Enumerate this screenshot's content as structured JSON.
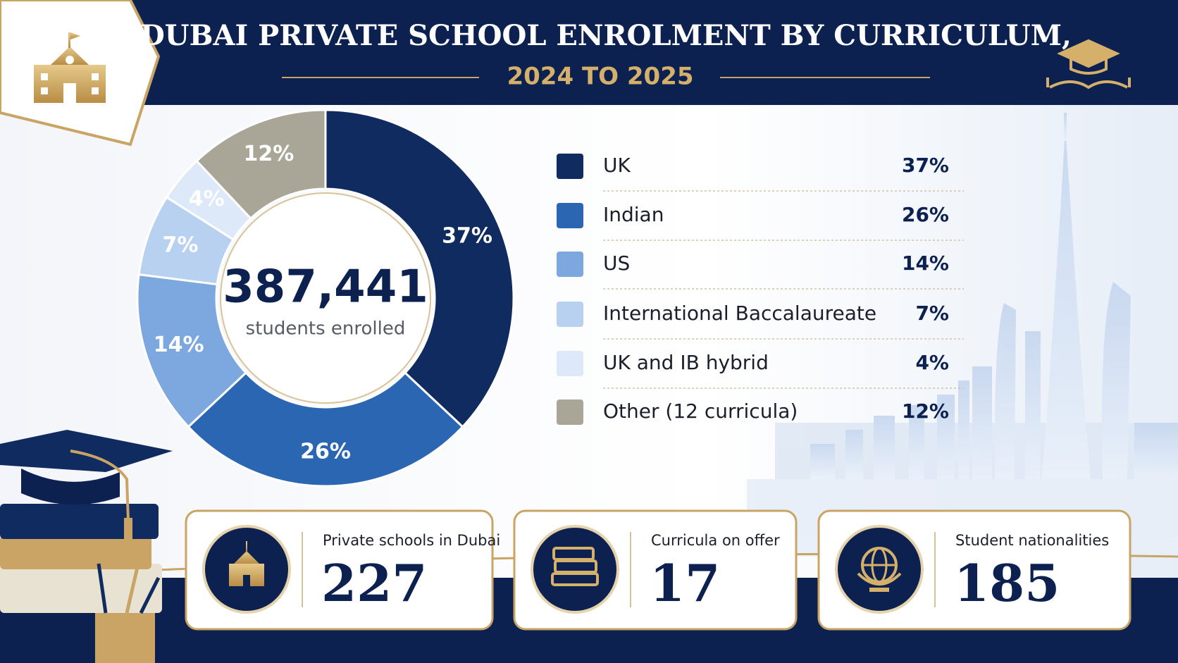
{
  "chart_data": {
    "type": "donut",
    "title": "DUBAI PRIVATE SCHOOL ENROLMENT BY CURRICULUM,",
    "subtitle": "2024 TO 2025",
    "center_value": 387441,
    "center_value_label": "387,441",
    "center_text": "students enrolled",
    "categories": [
      "UK",
      "Indian",
      "US",
      "International Baccalaureate",
      "UK and IB hybrid",
      "Other (12 curricula)"
    ],
    "values": [
      37,
      26,
      14,
      7,
      4,
      12
    ],
    "value_labels": [
      "37%",
      "26%",
      "14%",
      "7%",
      "4%",
      "12%"
    ],
    "colors": [
      "#102b5f",
      "#2b66b3",
      "#7ca8df",
      "#b8d1f1",
      "#dde9f9",
      "#aaa697"
    ]
  },
  "stats": [
    {
      "label": "Private schools in Dubai",
      "value": 227
    },
    {
      "label": "Curricula on offer",
      "value": 17
    },
    {
      "label": "Student nationalities",
      "value": 185
    }
  ]
}
